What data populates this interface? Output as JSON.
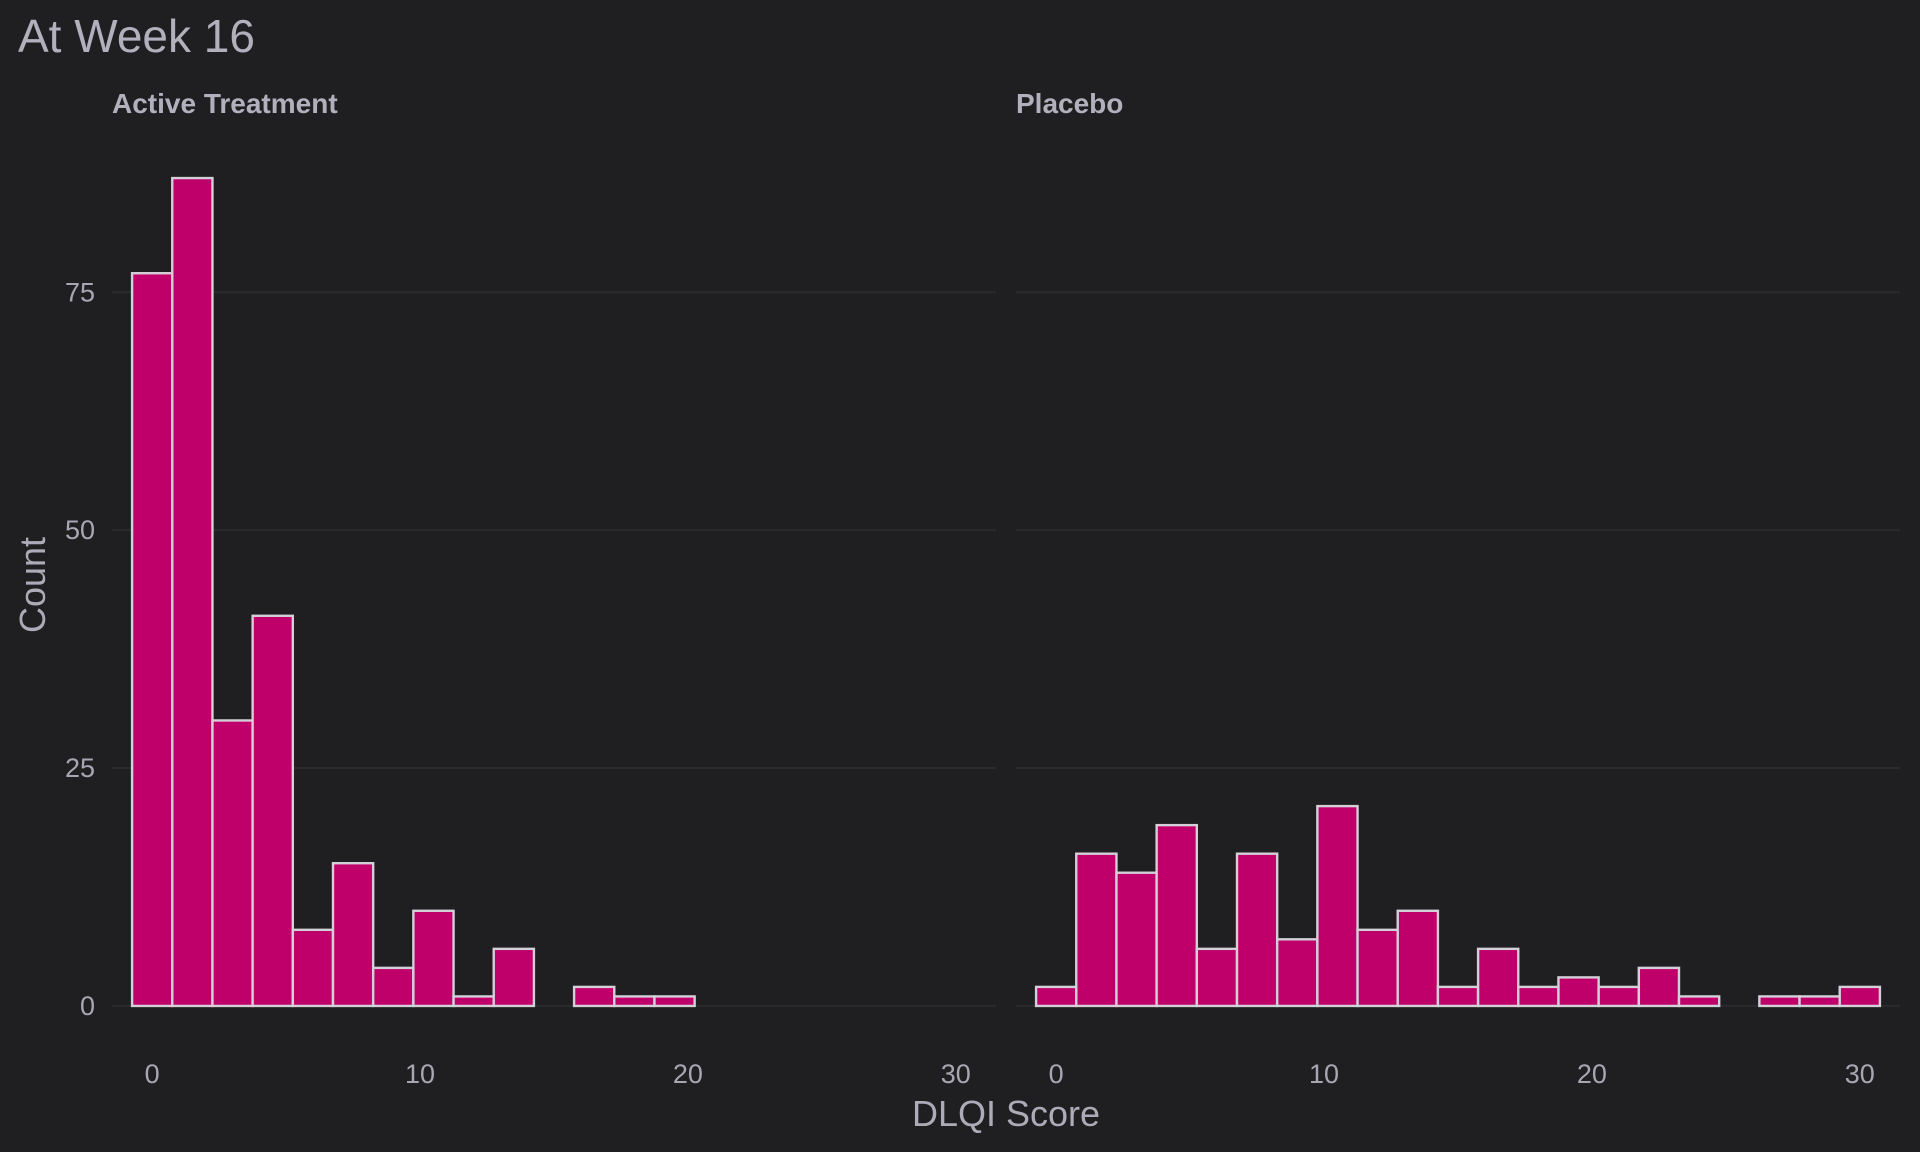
{
  "chart_data": {
    "type": "bar",
    "title": "At Week 16",
    "xlabel": "DLQI Score",
    "ylabel": "Count",
    "xlim": [
      -1.5,
      31.5
    ],
    "ylim": [
      -4,
      91
    ],
    "x_ticks": [
      0,
      10,
      20,
      30
    ],
    "y_ticks": [
      0,
      25,
      50,
      75
    ],
    "bin_width": 1.5,
    "grid": true,
    "bar_color": "#c0006a",
    "bar_outline": "#d3d0d8",
    "background": "#1f1f22",
    "panels": [
      {
        "name": "Active Treatment",
        "bins_start": -0.75,
        "counts": [
          77,
          87,
          30,
          41,
          8,
          15,
          4,
          10,
          1,
          6,
          0,
          2,
          1,
          1,
          0,
          0,
          0,
          0,
          0,
          0,
          0
        ]
      },
      {
        "name": "Placebo",
        "bins_start": -0.75,
        "counts": [
          2,
          16,
          14,
          19,
          6,
          16,
          7,
          21,
          8,
          10,
          2,
          6,
          2,
          3,
          2,
          4,
          1,
          0,
          1,
          1,
          2
        ]
      }
    ]
  }
}
